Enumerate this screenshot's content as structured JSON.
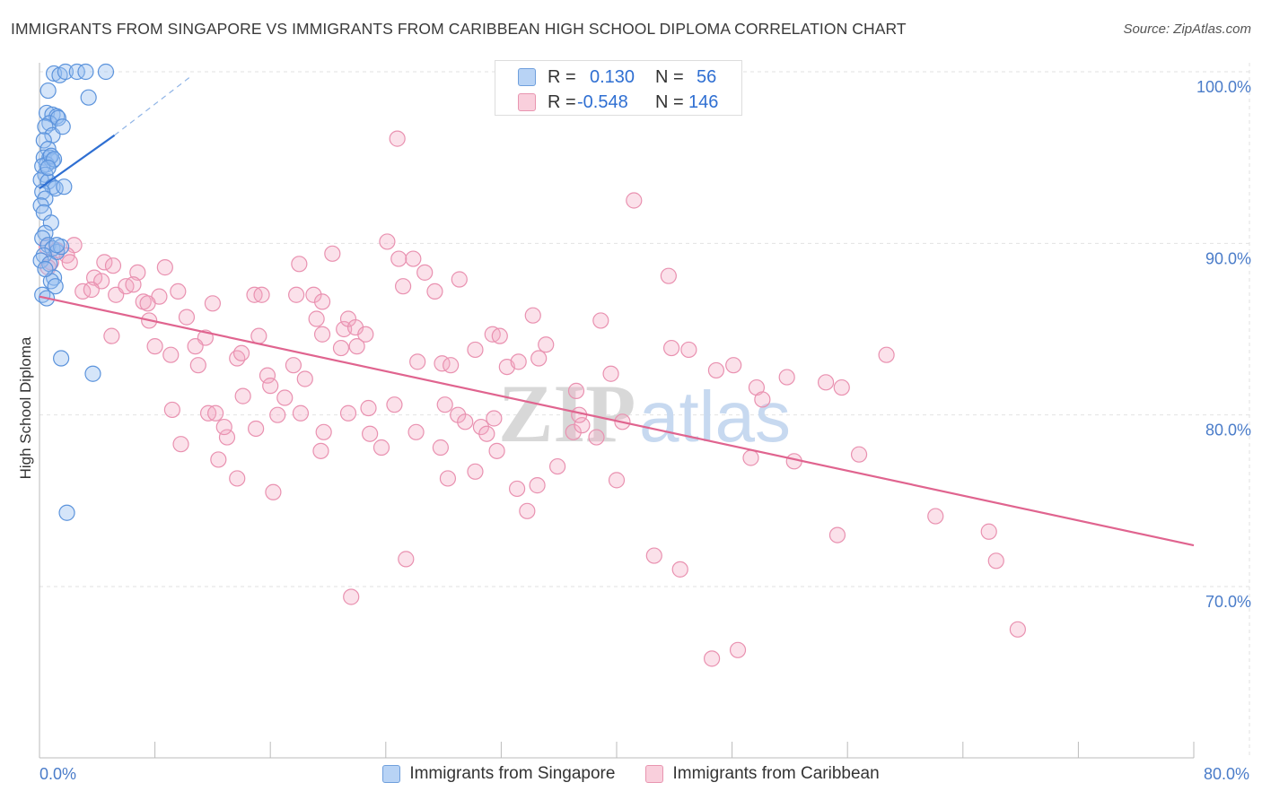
{
  "title": "IMMIGRANTS FROM SINGAPORE VS IMMIGRANTS FROM CARIBBEAN HIGH SCHOOL DIPLOMA CORRELATION CHART",
  "source": "Source: ZipAtlas.com",
  "watermark": {
    "zip": "ZIP",
    "atlas": "atlas"
  },
  "stats": {
    "rows": [
      {
        "r_label": "R =",
        "r_value": "0.130",
        "n_label": "N =",
        "n_value": "56",
        "color": "#4a86d8"
      },
      {
        "r_label": "R =",
        "r_value": "-0.548",
        "n_label": "N =",
        "n_value": "146",
        "color": "#e56f99"
      }
    ]
  },
  "legend": {
    "singapore": "Immigrants from Singapore",
    "caribbean": "Immigrants from Caribbean"
  },
  "colors": {
    "blue": "#4a86d8",
    "blue_line": "#2f6fd2",
    "pink": "#e56f99",
    "pink_line": "#e0648f",
    "tick_label": "#4a7cc9"
  },
  "chart_data": {
    "type": "scatter",
    "ylabel": "High School Diploma",
    "xlim": [
      0,
      80
    ],
    "ylim": [
      61,
      102
    ],
    "x_tick_labels": [
      {
        "x": 0,
        "label": "0.0%"
      },
      {
        "x": 80,
        "label": "80.0%"
      }
    ],
    "y_tick_labels": [
      {
        "y": 100,
        "label": "100.0%"
      },
      {
        "y": 90,
        "label": "90.0%"
      },
      {
        "y": 80,
        "label": "80.0%"
      },
      {
        "y": 70,
        "label": "70.0%"
      }
    ],
    "grid": true,
    "series": [
      {
        "name": "Immigrants from Singapore",
        "color": "#4a86d8",
        "trend": {
          "x": [
            0,
            5.2
          ],
          "y": [
            93.2,
            96.3
          ],
          "dash_to": {
            "x": 10.6,
            "y": 99.8
          }
        },
        "points": [
          [
            1.0,
            99.9
          ],
          [
            1.4,
            99.8
          ],
          [
            1.8,
            100.0
          ],
          [
            2.6,
            100.0
          ],
          [
            3.2,
            100.0
          ],
          [
            4.6,
            100.0
          ],
          [
            0.6,
            98.9
          ],
          [
            3.4,
            98.5
          ],
          [
            0.5,
            97.6
          ],
          [
            0.9,
            97.5
          ],
          [
            1.2,
            97.4
          ],
          [
            0.7,
            97.0
          ],
          [
            1.3,
            97.3
          ],
          [
            0.4,
            96.8
          ],
          [
            0.9,
            96.3
          ],
          [
            1.6,
            96.8
          ],
          [
            0.3,
            96.0
          ],
          [
            0.6,
            95.5
          ],
          [
            0.3,
            95.0
          ],
          [
            0.7,
            95.0
          ],
          [
            0.9,
            94.8
          ],
          [
            0.5,
            94.6
          ],
          [
            0.2,
            94.5
          ],
          [
            0.4,
            94.0
          ],
          [
            0.1,
            93.7
          ],
          [
            0.6,
            93.6
          ],
          [
            0.9,
            93.3
          ],
          [
            1.1,
            93.2
          ],
          [
            1.7,
            93.3
          ],
          [
            0.2,
            93.0
          ],
          [
            0.4,
            92.6
          ],
          [
            0.1,
            92.2
          ],
          [
            0.3,
            91.8
          ],
          [
            0.8,
            91.2
          ],
          [
            0.4,
            90.6
          ],
          [
            0.2,
            90.3
          ],
          [
            0.6,
            89.9
          ],
          [
            0.9,
            89.7
          ],
          [
            1.2,
            89.5
          ],
          [
            1.5,
            89.8
          ],
          [
            0.3,
            89.3
          ],
          [
            0.1,
            89.0
          ],
          [
            0.7,
            88.8
          ],
          [
            1.0,
            88.0
          ],
          [
            0.8,
            87.8
          ],
          [
            1.1,
            87.5
          ],
          [
            0.2,
            87.0
          ],
          [
            0.5,
            86.8
          ],
          [
            1.5,
            83.3
          ],
          [
            3.7,
            82.4
          ],
          [
            1.9,
            74.3
          ],
          [
            0.4,
            88.5
          ],
          [
            0.8,
            95.1
          ],
          [
            1.0,
            94.9
          ],
          [
            0.6,
            94.4
          ],
          [
            1.2,
            89.9
          ]
        ]
      },
      {
        "name": "Immigrants from Caribbean",
        "color": "#e56f99",
        "trend": {
          "x": [
            0,
            80
          ],
          "y": [
            86.9,
            72.4
          ]
        },
        "points": [
          [
            0.5,
            89.8
          ],
          [
            1.2,
            89.6
          ],
          [
            2.4,
            89.9
          ],
          [
            1.9,
            89.3
          ],
          [
            0.8,
            88.9
          ],
          [
            2.1,
            88.9
          ],
          [
            0.6,
            88.6
          ],
          [
            4.5,
            88.9
          ],
          [
            5.1,
            88.7
          ],
          [
            6.8,
            88.3
          ],
          [
            8.7,
            88.6
          ],
          [
            3.8,
            88.0
          ],
          [
            4.3,
            87.8
          ],
          [
            3.0,
            87.2
          ],
          [
            3.6,
            87.3
          ],
          [
            5.3,
            87.0
          ],
          [
            6.0,
            87.5
          ],
          [
            6.5,
            87.6
          ],
          [
            7.2,
            86.6
          ],
          [
            8.3,
            86.9
          ],
          [
            9.6,
            87.2
          ],
          [
            7.5,
            86.5
          ],
          [
            12.0,
            86.5
          ],
          [
            10.2,
            85.7
          ],
          [
            7.6,
            85.5
          ],
          [
            11.5,
            84.5
          ],
          [
            5.0,
            84.6
          ],
          [
            8.0,
            84.0
          ],
          [
            10.8,
            84.0
          ],
          [
            9.1,
            83.5
          ],
          [
            13.7,
            83.3
          ],
          [
            14.0,
            83.6
          ],
          [
            15.2,
            84.6
          ],
          [
            11.0,
            82.9
          ],
          [
            15.8,
            82.3
          ],
          [
            14.1,
            81.1
          ],
          [
            16.0,
            81.7
          ],
          [
            9.2,
            80.3
          ],
          [
            11.7,
            80.1
          ],
          [
            17.6,
            82.9
          ],
          [
            18.4,
            82.1
          ],
          [
            17.0,
            81.0
          ],
          [
            19.6,
            84.7
          ],
          [
            20.9,
            83.9
          ],
          [
            21.1,
            85.0
          ],
          [
            21.4,
            85.6
          ],
          [
            21.9,
            85.1
          ],
          [
            22.0,
            84.0
          ],
          [
            22.6,
            84.7
          ],
          [
            14.9,
            87.0
          ],
          [
            15.4,
            87.0
          ],
          [
            17.8,
            87.0
          ],
          [
            18.0,
            88.8
          ],
          [
            19.0,
            87.0
          ],
          [
            19.6,
            86.6
          ],
          [
            19.2,
            85.6
          ],
          [
            20.3,
            89.4
          ],
          [
            24.1,
            90.1
          ],
          [
            24.9,
            89.1
          ],
          [
            25.2,
            87.5
          ],
          [
            25.9,
            89.1
          ],
          [
            26.7,
            88.3
          ],
          [
            27.4,
            87.2
          ],
          [
            29.1,
            87.9
          ],
          [
            30.2,
            83.8
          ],
          [
            31.4,
            84.7
          ],
          [
            31.9,
            84.6
          ],
          [
            32.4,
            82.8
          ],
          [
            33.2,
            83.1
          ],
          [
            34.2,
            85.8
          ],
          [
            35.1,
            84.1
          ],
          [
            34.6,
            83.3
          ],
          [
            24.6,
            80.6
          ],
          [
            26.1,
            79.0
          ],
          [
            27.9,
            83.0
          ],
          [
            28.5,
            82.9
          ],
          [
            26.2,
            83.1
          ],
          [
            22.8,
            80.4
          ],
          [
            23.7,
            78.1
          ],
          [
            18.1,
            80.1
          ],
          [
            19.7,
            79.0
          ],
          [
            21.4,
            80.1
          ],
          [
            19.5,
            77.9
          ],
          [
            28.1,
            80.6
          ],
          [
            29.0,
            80.0
          ],
          [
            29.5,
            79.6
          ],
          [
            30.6,
            79.3
          ],
          [
            31.5,
            79.8
          ],
          [
            31.0,
            78.9
          ],
          [
            30.2,
            76.7
          ],
          [
            28.3,
            76.3
          ],
          [
            31.7,
            77.9
          ],
          [
            34.5,
            75.9
          ],
          [
            33.1,
            75.7
          ],
          [
            38.9,
            85.5
          ],
          [
            37.2,
            81.4
          ],
          [
            37.0,
            79.0
          ],
          [
            37.6,
            79.4
          ],
          [
            38.6,
            78.7
          ],
          [
            40.4,
            79.6
          ],
          [
            40.0,
            76.2
          ],
          [
            39.6,
            82.4
          ],
          [
            37.4,
            80.0
          ],
          [
            43.8,
            83.9
          ],
          [
            46.9,
            82.6
          ],
          [
            48.1,
            82.9
          ],
          [
            45.0,
            83.8
          ],
          [
            49.7,
            81.6
          ],
          [
            50.1,
            80.9
          ],
          [
            51.8,
            82.2
          ],
          [
            54.5,
            81.9
          ],
          [
            55.6,
            81.6
          ],
          [
            58.7,
            83.5
          ],
          [
            43.6,
            88.1
          ],
          [
            41.2,
            92.5
          ],
          [
            24.8,
            96.1
          ],
          [
            49.3,
            77.5
          ],
          [
            52.3,
            77.3
          ],
          [
            56.8,
            77.7
          ],
          [
            62.1,
            74.1
          ],
          [
            65.8,
            73.2
          ],
          [
            66.3,
            71.5
          ],
          [
            55.3,
            73.0
          ],
          [
            67.8,
            67.5
          ],
          [
            46.6,
            65.8
          ],
          [
            48.4,
            66.3
          ],
          [
            44.4,
            71.0
          ],
          [
            42.6,
            71.8
          ],
          [
            25.4,
            71.6
          ],
          [
            21.6,
            69.4
          ],
          [
            33.8,
            74.4
          ],
          [
            12.2,
            80.1
          ],
          [
            9.8,
            78.3
          ],
          [
            12.4,
            77.4
          ],
          [
            16.5,
            80.0
          ],
          [
            15.0,
            79.2
          ],
          [
            16.2,
            75.5
          ],
          [
            13.7,
            76.3
          ],
          [
            13.0,
            78.7
          ],
          [
            12.8,
            79.3
          ],
          [
            22.9,
            78.9
          ],
          [
            27.8,
            78.1
          ],
          [
            35.9,
            77.0
          ]
        ]
      }
    ]
  }
}
